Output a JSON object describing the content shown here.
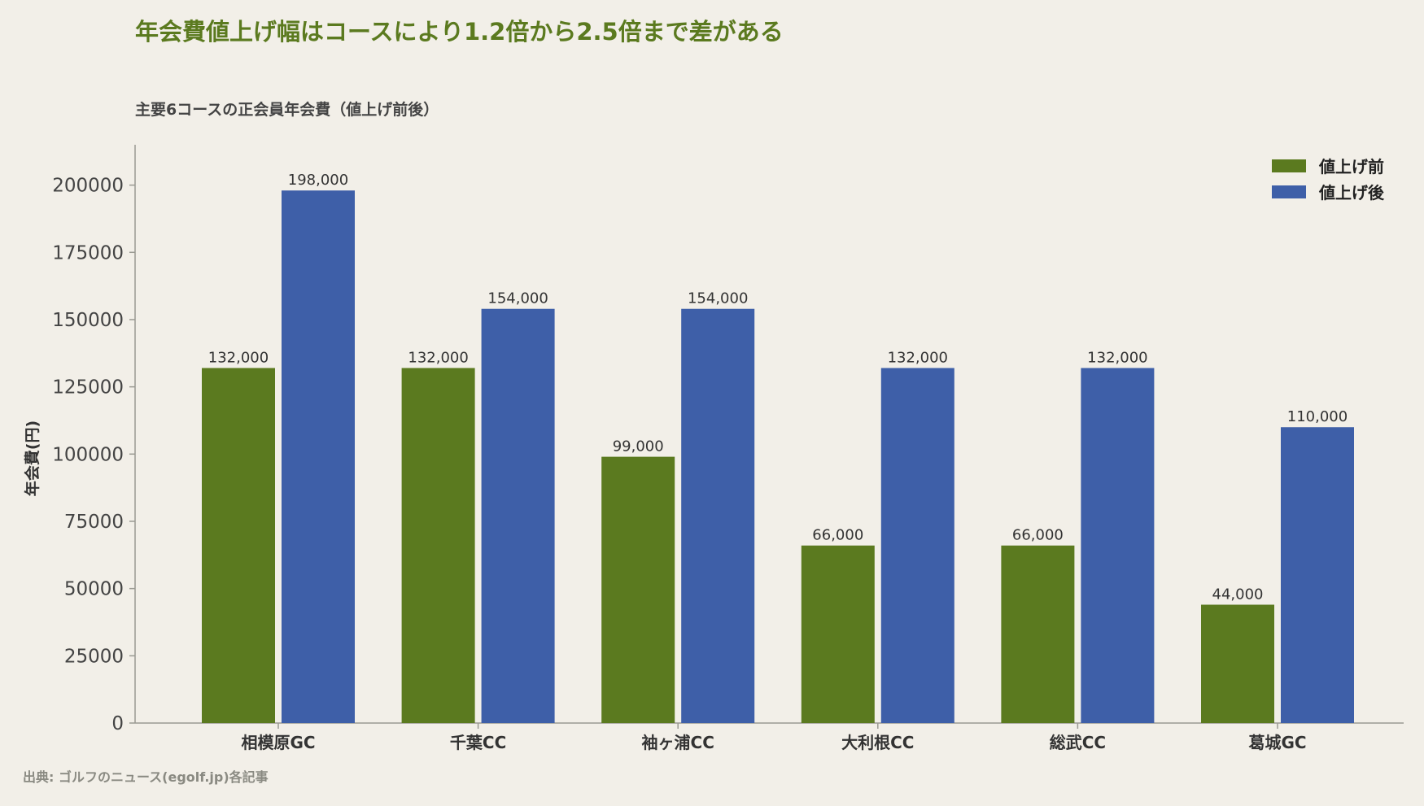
{
  "title": "年会費値上げ幅はコースにより1.2倍から2.5倍まで差がある",
  "subtitle": "主要6コースの正会員年会費（値上げ前後）",
  "source": "出典: ゴルフのニュース(egolf.jp)各記事",
  "colors": {
    "before": "#5b7a1f",
    "after": "#3e5fa8",
    "axis": "#9a9a92"
  },
  "chart_data": {
    "type": "bar",
    "categories": [
      "相模原GC",
      "千葉CC",
      "袖ヶ浦CC",
      "大利根CC",
      "総武CC",
      "葛城GC"
    ],
    "series": [
      {
        "name": "値上げ前",
        "values": [
          132000,
          132000,
          99000,
          66000,
          66000,
          44000
        ]
      },
      {
        "name": "値上げ後",
        "values": [
          198000,
          154000,
          154000,
          132000,
          132000,
          110000
        ]
      }
    ],
    "ylabel": "年会費(円)",
    "xlabel": "",
    "ylim": [
      0,
      215000
    ],
    "yticks": [
      0,
      25000,
      50000,
      75000,
      100000,
      125000,
      150000,
      175000,
      200000
    ],
    "data_labels": [
      [
        "132,000",
        "132,000",
        "99,000",
        "66,000",
        "66,000",
        "44,000"
      ],
      [
        "198,000",
        "154,000",
        "154,000",
        "132,000",
        "132,000",
        "110,000"
      ]
    ],
    "legend_position": "top-right",
    "grid": false
  }
}
